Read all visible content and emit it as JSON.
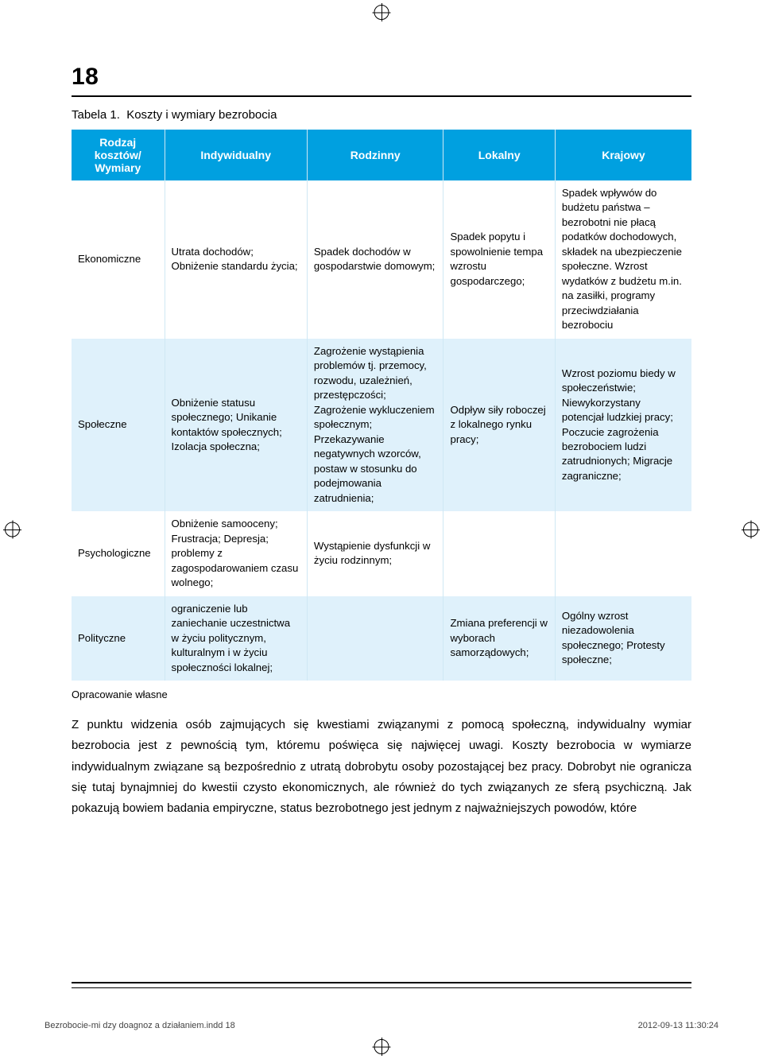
{
  "page_number": "18",
  "caption": "Tabela 1.  Koszty i wymiary bezrobocia",
  "table": {
    "columns": [
      {
        "header": "Rodzaj kosztów/ Wymiary"
      },
      {
        "header": "Indywidualny"
      },
      {
        "header": "Rodzinny"
      },
      {
        "header": "Lokalny"
      },
      {
        "header": "Krajowy"
      }
    ],
    "rows": [
      {
        "label": "Ekonomiczne",
        "cells": [
          "Utrata dochodów; Obniżenie standardu życia;",
          "Spadek dochodów w gospodarstwie domowym;",
          "Spadek popytu i spowolnienie tempa wzrostu gospodarczego;",
          "Spadek wpływów do budżetu państwa – bezrobotni nie płacą podatków dochodowych, składek na ubezpieczenie społeczne. Wzrost wydatków z budżetu m.in. na zasiłki, programy przeciwdziałania bezrobociu"
        ]
      },
      {
        "label": "Społeczne",
        "cells": [
          "Obniżenie statusu społecznego; Unikanie kontaktów społecznych; Izolacja społeczna;",
          "Zagrożenie wystąpienia problemów tj. przemocy, rozwodu, uzależnień, przestępczości; Zagrożenie wykluczeniem społecznym; Przekazywanie negatywnych wzorców, postaw w stosunku do podejmowania zatrudnienia;",
          "Odpływ siły roboczej z lokalnego rynku pracy;",
          "Wzrost poziomu biedy w społeczeństwie; Niewykorzystany potencjał ludzkiej pracy; Poczucie zagrożenia bezrobociem ludzi zatrudnionych; Migracje zagraniczne;"
        ]
      },
      {
        "label": "Psychologiczne",
        "cells": [
          "Obniżenie samooceny; Frustracja; Depresja; problemy z zagospodarowaniem czasu wolnego;",
          "Wystąpienie dysfunkcji w życiu rodzinnym;",
          "",
          ""
        ]
      },
      {
        "label": "Polityczne",
        "cells": [
          "ograniczenie lub zaniechanie uczestnictwa w życiu politycznym, kulturalnym i w życiu społeczności lokalnej;",
          "",
          "Zmiana preferencji w wyborach samorządowych;",
          "Ogólny wzrost niezadowolenia społecznego; Protesty społeczne;"
        ]
      }
    ]
  },
  "source_note": "Opracowanie własne",
  "paragraph": "Z punktu widzenia osób zajmujących się kwestiami związanymi z pomocą społeczną, indywidualny wymiar bezrobocia jest z pewnością tym, któremu poświęca się najwięcej uwagi. Koszty bezrobocia w wymiarze indywidualnym związane są bezpośrednio z utratą dobrobytu osoby pozostającej bez pracy. Dobrobyt nie ogranicza się tutaj bynajmniej do kwestii czysto ekonomicznych, ale również do tych związanych ze sferą psychiczną. Jak pokazują bowiem badania empiryczne, status bezrobotnego jest jednym z najważniejszych powodów, które",
  "footer": {
    "left": "Bezrobocie-mi dzy doagnoz  a działaniem.indd   18",
    "right": "2012-09-13   11:30:24"
  },
  "colors": {
    "header_bg": "#00a0e0",
    "header_fg": "#ffffff",
    "row_alt_bg": "#dff1fb",
    "border": "#cfe8f4"
  }
}
